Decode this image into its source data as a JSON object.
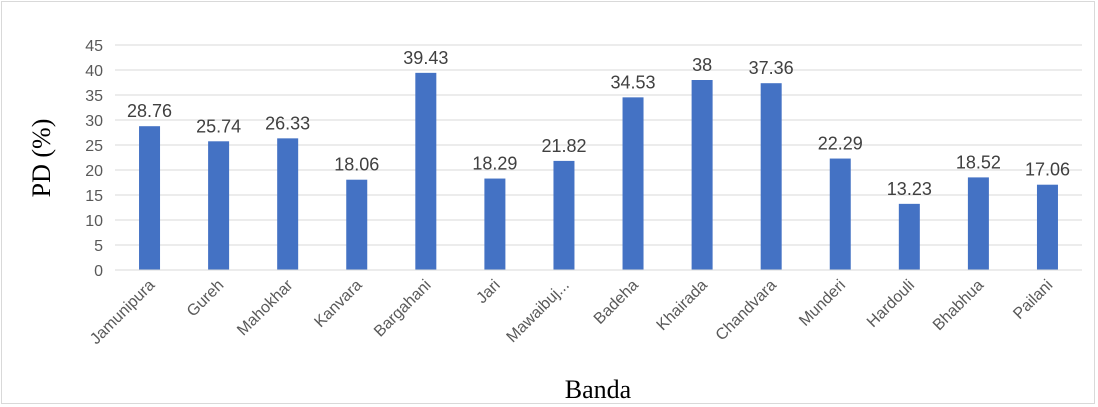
{
  "chart_data": {
    "type": "bar",
    "categories": [
      "Jamunipura",
      "Gureh",
      "Mahokhar",
      "Kanvara",
      "Bargahani",
      "Jari",
      "Mawaibuj...",
      "Badeha",
      "Khairada",
      "Chandvara",
      "Munderi",
      "Hardouli",
      "Bhabhua",
      "Pailani"
    ],
    "values": [
      28.76,
      25.74,
      26.33,
      18.06,
      39.43,
      18.29,
      21.82,
      34.53,
      38,
      37.36,
      22.29,
      13.23,
      18.52,
      17.06
    ],
    "data_labels": [
      "28.76",
      "25.74",
      "26.33",
      "18.06",
      "39.43",
      "18.29",
      "21.82",
      "34.53",
      "38",
      "37.36",
      "22.29",
      "13.23",
      "18.52",
      "17.06"
    ],
    "xlabel": "Banda",
    "ylabel": "PD (%)",
    "ylim": [
      0,
      45
    ],
    "yticks": [
      0,
      5,
      10,
      15,
      20,
      25,
      30,
      35,
      40,
      45
    ],
    "grid": true,
    "legend": "none",
    "bar_color": "#4472c4",
    "grid_color": "#d9d9d9"
  }
}
